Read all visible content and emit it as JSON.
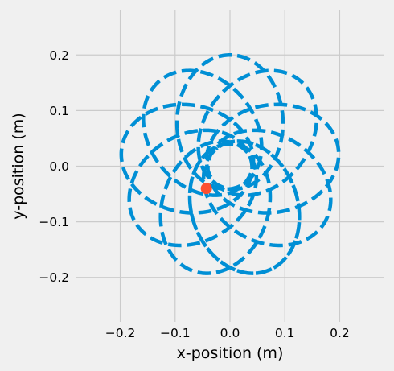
{
  "chart_data": {
    "type": "line",
    "title": "",
    "xlabel": "x-position (m)",
    "ylabel": "y-position (m)",
    "xlim": [
      -0.28,
      0.28
    ],
    "ylim": [
      -0.28,
      0.28
    ],
    "xticks": [
      -0.2,
      -0.1,
      0.0,
      0.1,
      0.2
    ],
    "yticks": [
      -0.2,
      -0.1,
      0.0,
      0.1,
      0.2
    ],
    "xtick_labels": [
      "−0.2",
      "−0.1",
      "0.0",
      "0.1",
      "0.2"
    ],
    "ytick_labels": [
      "−0.2",
      "−0.1",
      "0.0",
      "0.1",
      "0.2"
    ],
    "grid": true,
    "series": [
      {
        "style": "dashed",
        "color": "#008fd5",
        "orbit": {
          "semi_major_axis": 0.12,
          "eccentricity": 0.667,
          "precession_per_orbit_deg": 36,
          "orbits": 10,
          "start_point": [
            0.0,
            0.2
          ]
        }
      }
    ],
    "marker": {
      "x": -0.043,
      "y": -0.04,
      "color": "#fc4f30"
    }
  },
  "colors": {
    "background": "#f0f0f0",
    "grid": "#cbcbcb",
    "line": "#008fd5",
    "marker": "#fc4f30"
  }
}
